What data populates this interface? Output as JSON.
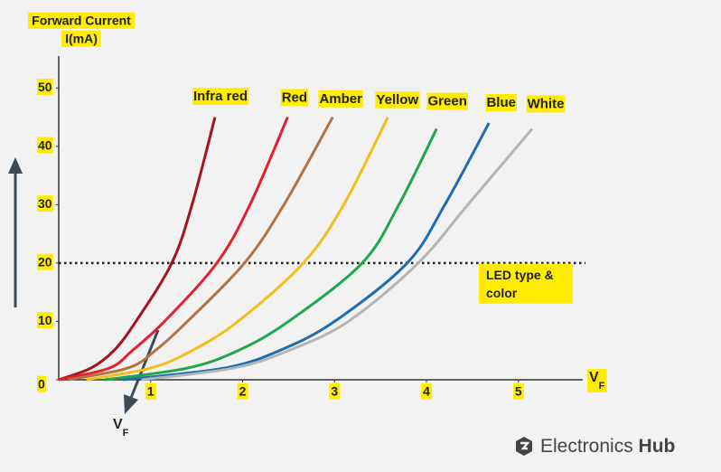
{
  "chart_data": {
    "type": "line",
    "y_label": [
      "Forward Current",
      "I(mA)"
    ],
    "x_label": {
      "main": "V",
      "sub": "F"
    },
    "arrow_label": {
      "main": "V",
      "sub": "F"
    },
    "xlim": [
      0,
      5.7
    ],
    "xticks": [
      1,
      2,
      3,
      4,
      5
    ],
    "ylim": [
      0,
      55
    ],
    "yticks": [
      0,
      10,
      20,
      30,
      40,
      50
    ],
    "reference_line": 20,
    "annotation": [
      "LED type &",
      "color"
    ],
    "series": [
      {
        "name": "Infra red",
        "color": "#a3141b",
        "x": [
          0,
          0.35,
          0.6,
          0.84,
          1.23,
          1.45,
          1.7
        ],
        "values": [
          0,
          2,
          5,
          10,
          20,
          30,
          45
        ]
      },
      {
        "name": "Red",
        "color": "#e4202a",
        "x": [
          0,
          0.55,
          0.8,
          1.15,
          1.72,
          2.08,
          2.49
        ],
        "values": [
          0,
          2,
          5,
          10,
          20,
          30,
          45
        ]
      },
      {
        "name": "Amber",
        "color": "#b3723f",
        "x": [
          0.1,
          0.75,
          1.05,
          1.4,
          2.02,
          2.45,
          2.98
        ],
        "values": [
          0,
          2,
          5,
          10,
          20,
          30,
          45
        ]
      },
      {
        "name": "Yellow",
        "color": "#f3bd1a",
        "x": [
          0.3,
          1.0,
          1.45,
          1.95,
          2.66,
          3.1,
          3.58
        ],
        "values": [
          0,
          2,
          5,
          10,
          20,
          30,
          45
        ]
      },
      {
        "name": "Green",
        "color": "#20a64b",
        "x": [
          0.5,
          1.4,
          1.95,
          2.5,
          3.3,
          3.7,
          4.11
        ],
        "values": [
          0,
          2,
          5,
          10,
          20,
          30,
          43
        ]
      },
      {
        "name": "Blue",
        "color": "#1c6db3",
        "x": [
          0.7,
          1.8,
          2.4,
          3.0,
          3.79,
          4.2,
          4.68
        ],
        "values": [
          0,
          2,
          5,
          10,
          20,
          30,
          44
        ]
      },
      {
        "name": "White",
        "color": "#b5b5b5",
        "x": [
          0.9,
          1.9,
          2.5,
          3.15,
          3.91,
          4.45,
          5.15
        ],
        "values": [
          0,
          2,
          5,
          10,
          20,
          30,
          43
        ]
      }
    ],
    "brand": {
      "text": "Electronics",
      "bold": "Hub"
    }
  }
}
